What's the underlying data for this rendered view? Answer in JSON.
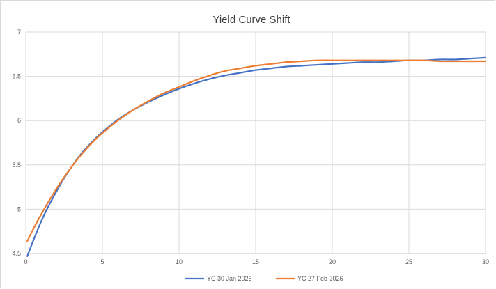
{
  "chart_data": {
    "type": "line",
    "title": "Yield Curve Shift",
    "xlabel": "",
    "ylabel": "",
    "xlim": [
      0,
      30
    ],
    "ylim": [
      4.5,
      7
    ],
    "x_ticks": [
      0,
      5,
      10,
      15,
      20,
      25,
      30
    ],
    "x_tick_labels": [
      "0",
      "5",
      "10",
      "15",
      "20",
      "25",
      "30"
    ],
    "y_ticks": [
      4.5,
      5,
      5.5,
      6,
      6.5,
      7
    ],
    "y_tick_labels": [
      "4.5",
      "5",
      "5.5",
      "6",
      "6.5",
      "7"
    ],
    "grid": true,
    "legend_position": "bottom",
    "series": [
      {
        "name": "YC 30 Jan 2026",
        "color": "#4472c4",
        "x": [
          0.1,
          0.5,
          1,
          1.5,
          2,
          2.5,
          3,
          3.5,
          4,
          4.5,
          5,
          6,
          7,
          8,
          9,
          10,
          11,
          12,
          13,
          14,
          15,
          16,
          17,
          18,
          19,
          20,
          21,
          22,
          23,
          24,
          25,
          26,
          27,
          28,
          29,
          30
        ],
        "y": [
          4.47,
          4.65,
          4.86,
          5.04,
          5.2,
          5.35,
          5.48,
          5.6,
          5.7,
          5.79,
          5.87,
          6.01,
          6.12,
          6.21,
          6.29,
          6.36,
          6.42,
          6.47,
          6.51,
          6.54,
          6.57,
          6.59,
          6.61,
          6.62,
          6.63,
          6.64,
          6.65,
          6.66,
          6.66,
          6.67,
          6.68,
          6.68,
          6.69,
          6.69,
          6.7,
          6.71
        ]
      },
      {
        "name": "YC 27 Feb 2026",
        "color": "#ed7d31",
        "x": [
          0.1,
          0.5,
          1,
          1.5,
          2,
          2.5,
          3,
          3.5,
          4,
          4.5,
          5,
          6,
          7,
          8,
          9,
          10,
          11,
          12,
          13,
          14,
          15,
          16,
          17,
          18,
          19,
          20,
          21,
          22,
          23,
          24,
          25,
          26,
          27,
          28,
          29,
          30
        ],
        "y": [
          4.64,
          4.78,
          4.94,
          5.09,
          5.23,
          5.36,
          5.48,
          5.59,
          5.69,
          5.78,
          5.86,
          6,
          6.12,
          6.22,
          6.31,
          6.38,
          6.45,
          6.51,
          6.56,
          6.59,
          6.62,
          6.64,
          6.66,
          6.67,
          6.68,
          6.68,
          6.68,
          6.68,
          6.68,
          6.68,
          6.68,
          6.68,
          6.67,
          6.67,
          6.67,
          6.67
        ]
      }
    ]
  }
}
